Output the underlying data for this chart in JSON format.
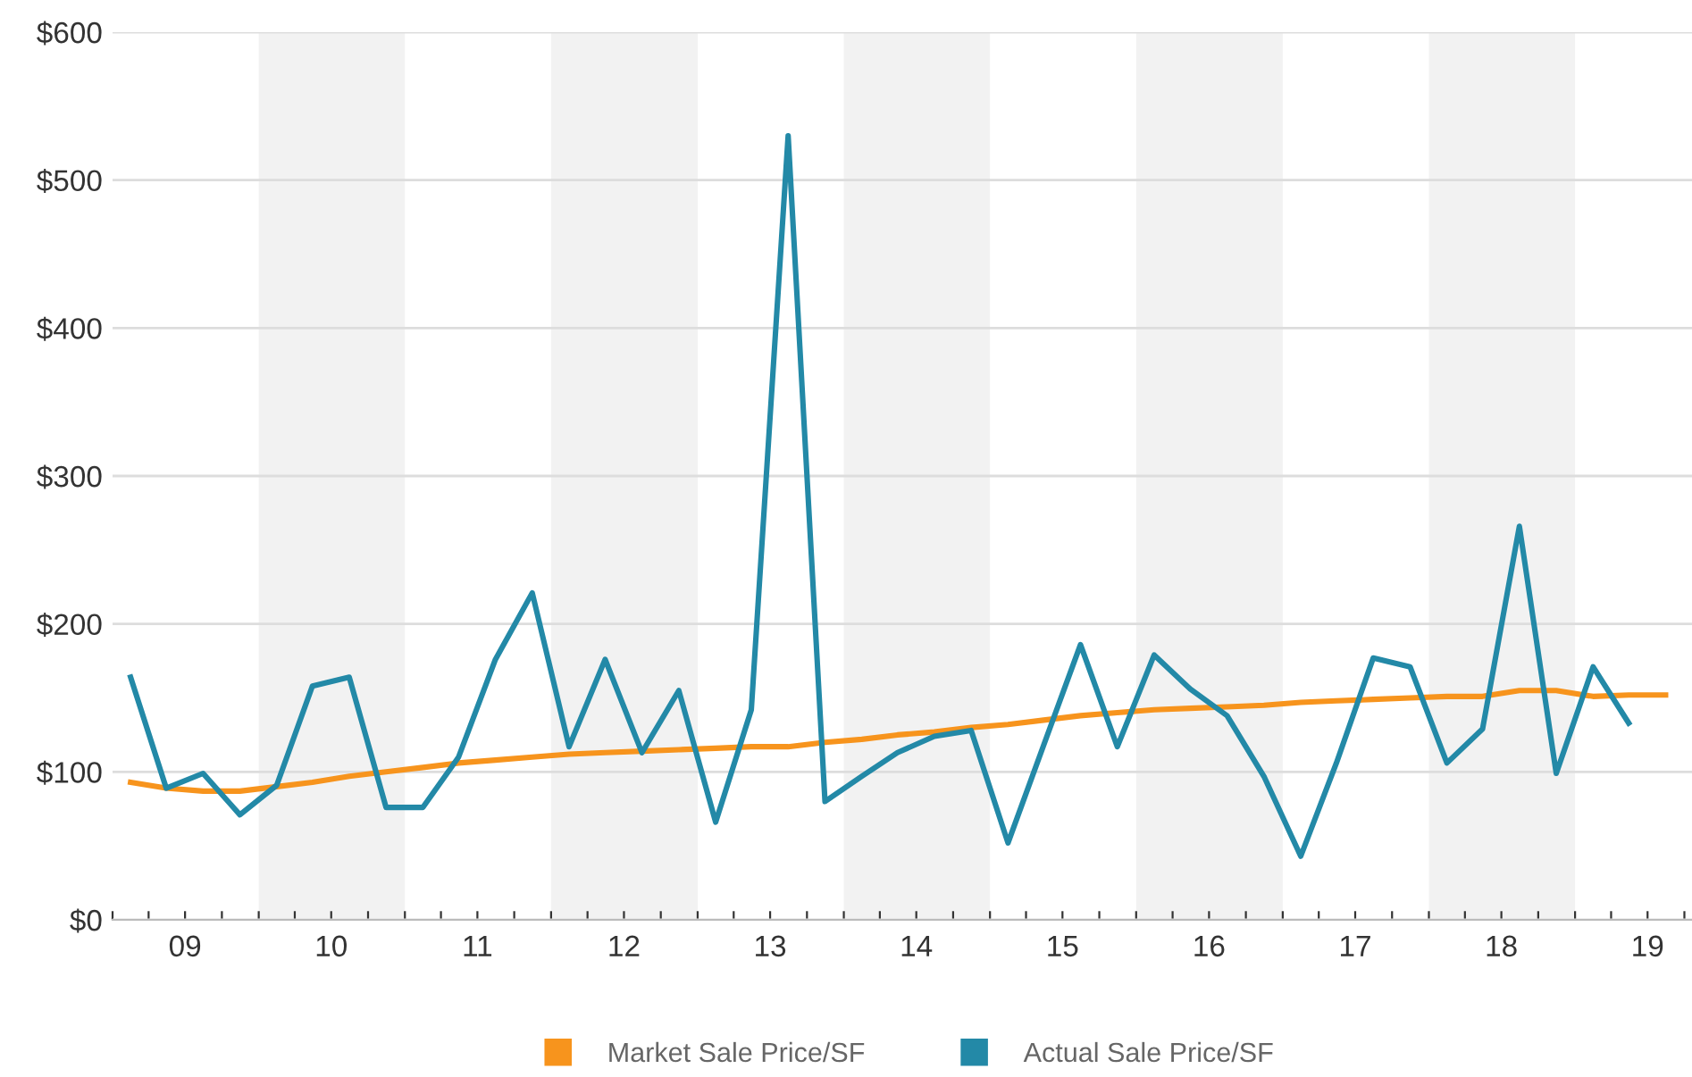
{
  "chart_data": {
    "type": "line",
    "x": [
      "2009-02-15",
      "2009-05-15",
      "2009-08-15",
      "2009-11-15",
      "2010-02-15",
      "2010-05-15",
      "2010-08-15",
      "2010-11-15",
      "2011-02-15",
      "2011-05-15",
      "2011-08-15",
      "2011-11-15",
      "2012-02-15",
      "2012-05-15",
      "2012-08-15",
      "2012-11-15",
      "2013-02-15",
      "2013-05-15",
      "2013-08-15",
      "2013-11-15",
      "2014-02-15",
      "2014-05-15",
      "2014-08-15",
      "2014-11-15",
      "2015-02-15",
      "2015-05-15",
      "2015-08-15",
      "2015-11-15",
      "2016-02-15",
      "2016-05-15",
      "2016-08-15",
      "2016-11-15",
      "2017-02-15",
      "2017-05-15",
      "2017-08-15",
      "2017-11-15",
      "2018-02-15",
      "2018-05-15",
      "2018-08-15",
      "2018-11-15",
      "2019-02-15",
      "2019-05-15",
      "2019-08-15"
    ],
    "series": [
      {
        "name": "Market Sale Price/SF",
        "color": "#f7941d",
        "values": [
          93,
          89,
          87,
          87,
          90,
          93,
          97,
          100,
          103,
          106,
          108,
          110,
          112,
          113,
          114,
          115,
          116,
          117,
          117,
          120,
          122,
          125,
          127,
          130,
          132,
          135,
          138,
          140,
          142,
          143,
          144,
          145,
          147,
          148,
          149,
          150,
          151,
          151,
          155,
          155,
          151,
          152,
          152
        ]
      },
      {
        "name": "Actual Sale Price/SF",
        "color": "#2389a7",
        "values": [
          164,
          89,
          99,
          71,
          91,
          158,
          164,
          76,
          76,
          110,
          176,
          221,
          117,
          176,
          113,
          155,
          66,
          142,
          530,
          80,
          97,
          113,
          124,
          128,
          52,
          118,
          186,
          117,
          179,
          156,
          138,
          97,
          43,
          106,
          177,
          171,
          106,
          129,
          266,
          99,
          171,
          133,
          null
        ]
      }
    ],
    "xlim": [
      "2009-01-01",
      "2019-10-20"
    ],
    "xticks": [
      {
        "value": "2009-01-01",
        "label": null
      },
      {
        "value": "2009-04-01",
        "label": null
      },
      {
        "value": "2009-07-01",
        "label": "09"
      },
      {
        "value": "2009-10-01",
        "label": null
      },
      {
        "value": "2010-01-01",
        "label": null
      },
      {
        "value": "2010-04-01",
        "label": null
      },
      {
        "value": "2010-07-01",
        "label": "10"
      },
      {
        "value": "2010-10-01",
        "label": null
      },
      {
        "value": "2011-01-01",
        "label": null
      },
      {
        "value": "2011-04-01",
        "label": null
      },
      {
        "value": "2011-07-01",
        "label": "11"
      },
      {
        "value": "2011-10-01",
        "label": null
      },
      {
        "value": "2012-01-01",
        "label": null
      },
      {
        "value": "2012-04-01",
        "label": null
      },
      {
        "value": "2012-07-01",
        "label": "12"
      },
      {
        "value": "2012-10-01",
        "label": null
      },
      {
        "value": "2013-01-01",
        "label": null
      },
      {
        "value": "2013-04-01",
        "label": null
      },
      {
        "value": "2013-07-01",
        "label": "13"
      },
      {
        "value": "2013-10-01",
        "label": null
      },
      {
        "value": "2014-01-01",
        "label": null
      },
      {
        "value": "2014-04-01",
        "label": null
      },
      {
        "value": "2014-07-01",
        "label": "14"
      },
      {
        "value": "2014-10-01",
        "label": null
      },
      {
        "value": "2015-01-01",
        "label": null
      },
      {
        "value": "2015-04-01",
        "label": null
      },
      {
        "value": "2015-07-01",
        "label": "15"
      },
      {
        "value": "2015-10-01",
        "label": null
      },
      {
        "value": "2016-01-01",
        "label": null
      },
      {
        "value": "2016-04-01",
        "label": null
      },
      {
        "value": "2016-07-01",
        "label": "16"
      },
      {
        "value": "2016-10-01",
        "label": null
      },
      {
        "value": "2017-01-01",
        "label": null
      },
      {
        "value": "2017-04-01",
        "label": null
      },
      {
        "value": "2017-07-01",
        "label": "17"
      },
      {
        "value": "2017-10-01",
        "label": null
      },
      {
        "value": "2018-01-01",
        "label": null
      },
      {
        "value": "2018-04-01",
        "label": null
      },
      {
        "value": "2018-07-01",
        "label": "18"
      },
      {
        "value": "2018-10-01",
        "label": null
      },
      {
        "value": "2019-01-01",
        "label": null
      },
      {
        "value": "2019-04-01",
        "label": null
      },
      {
        "value": "2019-07-01",
        "label": "19"
      },
      {
        "value": "2019-10-01",
        "label": null
      }
    ],
    "ylim": [
      0,
      600
    ],
    "yticks": [
      {
        "value": 0,
        "label": "$0"
      },
      {
        "value": 100,
        "label": "$100"
      },
      {
        "value": 200,
        "label": "$200"
      },
      {
        "value": 300,
        "label": "$300"
      },
      {
        "value": 400,
        "label": "$400"
      },
      {
        "value": 500,
        "label": "$500"
      },
      {
        "value": 600,
        "label": "$600"
      }
    ],
    "bands": [
      {
        "axis": "x",
        "from": "2010-01-01",
        "to": "2011-01-01",
        "color": "#f2f2f2"
      },
      {
        "axis": "x",
        "from": "2012-01-01",
        "to": "2013-01-01",
        "color": "#f2f2f2"
      },
      {
        "axis": "x",
        "from": "2014-01-01",
        "to": "2015-01-01",
        "color": "#f2f2f2"
      },
      {
        "axis": "x",
        "from": "2016-01-01",
        "to": "2017-01-01",
        "color": "#f2f2f2"
      },
      {
        "axis": "x",
        "from": "2018-01-01",
        "to": "2019-01-01",
        "color": "#f2f2f2"
      }
    ],
    "grid": "y",
    "legend": "bottom",
    "marker": "none",
    "line_style": "solid"
  }
}
